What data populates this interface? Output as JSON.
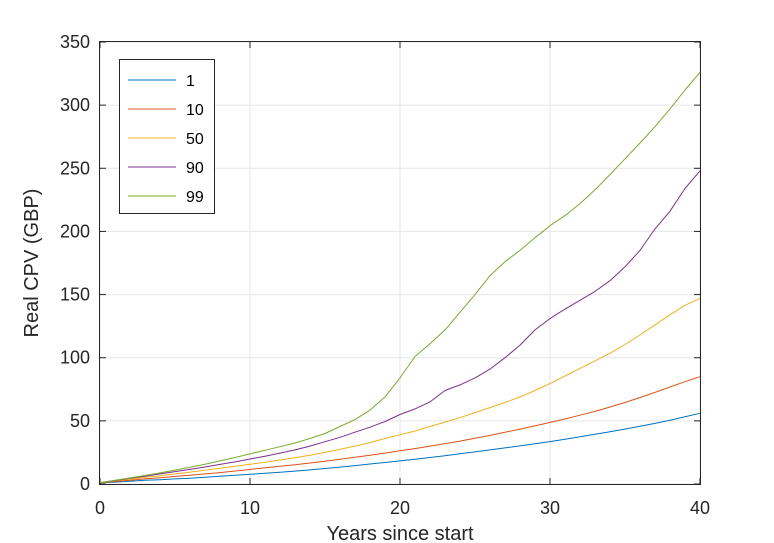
{
  "chart_data": {
    "type": "line",
    "xlabel": "Years since start",
    "ylabel": "Real CPV (GBP)",
    "xlim": [
      0,
      40
    ],
    "ylim": [
      0,
      350
    ],
    "xticks": [
      0,
      10,
      20,
      30,
      40
    ],
    "yticks": [
      0,
      50,
      100,
      150,
      200,
      250,
      300,
      350
    ],
    "grid": true,
    "legend_position": "top-left",
    "x": [
      0,
      1,
      2,
      3,
      4,
      5,
      6,
      7,
      8,
      9,
      10,
      11,
      12,
      13,
      14,
      15,
      16,
      17,
      18,
      19,
      20,
      21,
      22,
      23,
      24,
      25,
      26,
      27,
      28,
      29,
      30,
      31,
      32,
      33,
      34,
      35,
      36,
      37,
      38,
      39,
      40
    ],
    "series": [
      {
        "name": "1",
        "color": "#0072BD",
        "values": [
          1,
          1.5,
          2.2,
          2.9,
          3.4,
          4.0,
          4.6,
          5.3,
          6.1,
          6.9,
          7.7,
          8.5,
          9.3,
          10.2,
          11.2,
          12.3,
          13.4,
          14.6,
          15.8,
          17.0,
          18.3,
          19.6,
          21.0,
          22.4,
          23.9,
          25.4,
          27.0,
          28.6,
          30.2,
          31.8,
          33.6,
          35.5,
          37.4,
          39.4,
          41.4,
          43.5,
          45.7,
          48.0,
          50.5,
          53.2,
          56.0
        ]
      },
      {
        "name": "10",
        "color": "#D95319",
        "values": [
          1,
          2.0,
          3.0,
          4.0,
          5.0,
          6.0,
          7.0,
          8.0,
          9.0,
          10.3,
          11.5,
          12.8,
          14.0,
          15.3,
          16.6,
          18.0,
          19.6,
          21.2,
          22.8,
          24.5,
          26.3,
          28.0,
          30.0,
          32.0,
          34.0,
          36.2,
          38.5,
          41.0,
          43.5,
          46.0,
          48.8,
          51.5,
          54.5,
          57.5,
          61.0,
          64.5,
          68.5,
          72.5,
          76.8,
          81.0,
          85.0
        ]
      },
      {
        "name": "50",
        "color": "#EDB120",
        "values": [
          1,
          2.5,
          3.8,
          5.2,
          6.6,
          8.0,
          9.4,
          10.9,
          12.4,
          14.0,
          15.6,
          17.3,
          19.0,
          20.8,
          22.8,
          25.0,
          27.5,
          30.0,
          32.8,
          36.0,
          39.0,
          42.0,
          45.5,
          49.0,
          52.5,
          56.5,
          60.5,
          64.5,
          69.0,
          74.0,
          79.5,
          85.5,
          91.5,
          97.5,
          103.5,
          110.5,
          118.0,
          126.0,
          134.0,
          141.5,
          147.0
        ]
      },
      {
        "name": "90",
        "color": "#7E2F8E",
        "values": [
          1,
          2.8,
          4.5,
          6.2,
          8.0,
          9.8,
          11.6,
          13.5,
          15.5,
          17.5,
          19.8,
          22.0,
          24.5,
          27.0,
          30.0,
          33.5,
          37.0,
          41.0,
          45.0,
          49.5,
          55.0,
          59.5,
          65.0,
          74.0,
          78.5,
          84.0,
          91.0,
          100.0,
          110.0,
          122.0,
          131.0,
          138.5,
          145.5,
          152.5,
          161.0,
          172.0,
          185.0,
          202.0,
          216.0,
          234.0,
          248.0
        ]
      },
      {
        "name": "99",
        "color": "#77AC30",
        "values": [
          1,
          3.0,
          4.8,
          6.7,
          8.8,
          11.0,
          13.3,
          15.7,
          18.3,
          21.0,
          23.8,
          26.7,
          29.5,
          32.5,
          36.0,
          40.0,
          45.5,
          51.0,
          58.5,
          69.0,
          84.0,
          101.0,
          111.0,
          122.0,
          136.0,
          150.0,
          165.0,
          176.0,
          185.0,
          195.0,
          204.5,
          212.5,
          222.0,
          233.0,
          245.0,
          257.5,
          270.0,
          283.0,
          297.0,
          312.0,
          326.0
        ]
      }
    ]
  }
}
